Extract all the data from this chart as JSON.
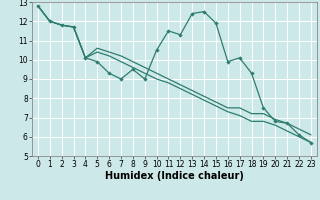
{
  "xlabel": "Humidex (Indice chaleur)",
  "background_color": "#cce8e8",
  "grid_color": "#ffffff",
  "line_color": "#2e7d6e",
  "xlim": [
    -0.5,
    23.5
  ],
  "ylim": [
    5,
    13
  ],
  "xticks": [
    0,
    1,
    2,
    3,
    4,
    5,
    6,
    7,
    8,
    9,
    10,
    11,
    12,
    13,
    14,
    15,
    16,
    17,
    18,
    19,
    20,
    21,
    22,
    23
  ],
  "yticks": [
    5,
    6,
    7,
    8,
    9,
    10,
    11,
    12,
    13
  ],
  "x_data": [
    0,
    1,
    2,
    3,
    4,
    5,
    6,
    7,
    8,
    9,
    10,
    11,
    12,
    13,
    14,
    15,
    16,
    17,
    18,
    19,
    20,
    21,
    22,
    23
  ],
  "line1_y": [
    12.8,
    12.0,
    11.8,
    11.7,
    10.1,
    9.9,
    9.3,
    9.0,
    9.5,
    9.0,
    10.5,
    11.5,
    11.3,
    12.4,
    12.5,
    11.9,
    9.9,
    10.1,
    9.3,
    7.5,
    6.8,
    6.7,
    6.1,
    5.7
  ],
  "line2_y": [
    12.8,
    12.0,
    11.8,
    11.7,
    10.1,
    10.6,
    10.4,
    10.2,
    9.9,
    9.6,
    9.3,
    9.0,
    8.7,
    8.4,
    8.1,
    7.8,
    7.5,
    7.5,
    7.2,
    7.2,
    6.9,
    6.7,
    6.4,
    6.1
  ],
  "line3_y": [
    12.8,
    12.0,
    11.8,
    11.7,
    10.1,
    10.4,
    10.2,
    9.9,
    9.6,
    9.3,
    9.0,
    8.8,
    8.5,
    8.2,
    7.9,
    7.6,
    7.3,
    7.1,
    6.8,
    6.8,
    6.6,
    6.3,
    6.0,
    5.7
  ],
  "tick_fontsize": 5.5,
  "xlabel_fontsize": 7.0
}
